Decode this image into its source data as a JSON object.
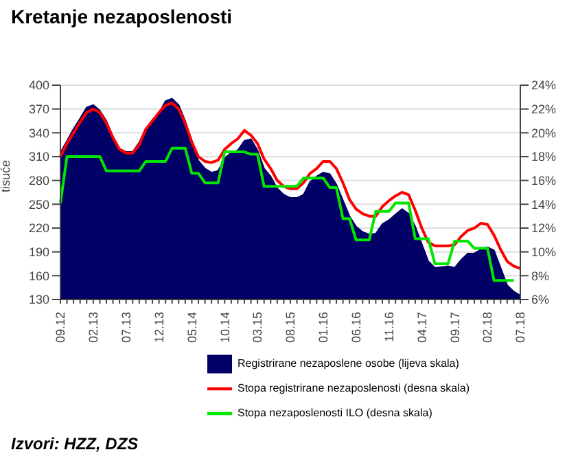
{
  "chart_data": {
    "type": "area",
    "title": "Kretanje nezaposlenosti",
    "ylabel": "tisuće",
    "categories": [
      "09.12",
      null,
      null,
      null,
      null,
      "02.13",
      null,
      null,
      null,
      null,
      "07.13",
      null,
      null,
      null,
      null,
      "12.13",
      null,
      null,
      null,
      null,
      "05.14",
      null,
      null,
      null,
      null,
      "10.14",
      null,
      null,
      null,
      null,
      "03.15",
      null,
      null,
      null,
      null,
      "08.15",
      null,
      null,
      null,
      null,
      "01.16",
      null,
      null,
      null,
      null,
      "06.16",
      null,
      null,
      null,
      null,
      "11.16",
      null,
      null,
      null,
      null,
      "04.17",
      null,
      null,
      null,
      null,
      "09.17",
      null,
      null,
      null,
      null,
      "02.18",
      null,
      null,
      null,
      null,
      "07.18"
    ],
    "series": [
      {
        "name": "Registrirane nezaposlene osobe (lijeva skala)",
        "color": "#000066",
        "values": [
          315,
          330,
          345,
          358,
          372,
          375,
          368,
          355,
          335,
          320,
          316,
          316,
          328,
          345,
          356,
          365,
          380,
          383,
          375,
          355,
          330,
          305,
          295,
          290,
          292,
          308,
          315,
          318,
          330,
          332,
          318,
          295,
          285,
          270,
          262,
          258,
          258,
          262,
          278,
          285,
          290,
          288,
          275,
          255,
          235,
          222,
          215,
          212,
          213,
          225,
          230,
          237,
          244,
          238,
          222,
          200,
          178,
          170,
          171,
          172,
          170,
          180,
          188,
          188,
          193,
          196,
          192,
          170,
          148,
          140,
          135
        ]
      },
      {
        "name": "Stopa registrirane nezaposlenosti (desna skala)",
        "type": "line",
        "axis": "y2",
        "color": "#ff0000",
        "values": [
          18.0,
          19.1,
          20.0,
          20.9,
          21.7,
          22.0,
          21.7,
          20.8,
          19.6,
          18.6,
          18.3,
          18.3,
          19.0,
          20.3,
          21.0,
          21.7,
          22.3,
          22.5,
          22.0,
          20.8,
          19.2,
          18.0,
          17.6,
          17.5,
          17.7,
          18.6,
          19.1,
          19.5,
          20.2,
          19.8,
          19.1,
          17.8,
          17.0,
          16.0,
          15.5,
          15.3,
          15.3,
          15.8,
          16.6,
          17.0,
          17.6,
          17.6,
          17.0,
          15.8,
          14.4,
          13.6,
          13.2,
          13.0,
          13.0,
          13.8,
          14.3,
          14.7,
          15.0,
          14.8,
          13.5,
          12.0,
          10.8,
          10.5,
          10.5,
          10.5,
          10.6,
          11.3,
          11.8,
          12.0,
          12.4,
          12.3,
          11.4,
          10.2,
          9.2,
          8.8,
          8.6
        ]
      },
      {
        "name": "Stopa nezaposlenosti ILO (desna skala)",
        "type": "line",
        "axis": "y2",
        "color": "#00e600",
        "values": [
          14.1,
          18.0,
          18.0,
          18.0,
          18.0,
          18.0,
          18.0,
          16.8,
          16.8,
          16.8,
          16.8,
          16.8,
          16.8,
          17.6,
          17.6,
          17.6,
          17.6,
          18.7,
          18.7,
          18.7,
          16.6,
          16.6,
          15.8,
          15.8,
          15.8,
          18.4,
          18.4,
          18.4,
          18.4,
          18.2,
          18.2,
          15.5,
          15.5,
          15.5,
          15.5,
          15.5,
          15.5,
          16.2,
          16.2,
          16.2,
          16.2,
          15.4,
          15.4,
          12.8,
          12.8,
          11.0,
          11.0,
          11.0,
          13.4,
          13.4,
          13.4,
          14.1,
          14.1,
          14.1,
          11.1,
          11.1,
          11.1,
          9.0,
          9.0,
          9.0,
          10.9,
          10.9,
          10.9,
          10.3,
          10.3,
          10.3,
          7.6,
          7.6,
          7.6,
          7.6,
          null
        ]
      }
    ],
    "ylim": [
      130,
      400
    ],
    "yticks": [
      130,
      160,
      190,
      220,
      250,
      280,
      310,
      340,
      370,
      400
    ],
    "y2lim": [
      6,
      24
    ],
    "y2ticks": [
      {
        "value": 6,
        "label": "6%"
      },
      {
        "value": 8,
        "label": "8%"
      },
      {
        "value": 10,
        "label": "10%"
      },
      {
        "value": 12,
        "label": "12%"
      },
      {
        "value": 14,
        "label": "14%"
      },
      {
        "value": 16,
        "label": "16%"
      },
      {
        "value": 18,
        "label": "18%"
      },
      {
        "value": 20,
        "label": "20%"
      },
      {
        "value": 22,
        "label": "22%"
      },
      {
        "value": 24,
        "label": "24%"
      }
    ],
    "grid": "y",
    "legend": "bottom",
    "marker": "none",
    "annotations": [
      "Izvori: HZZ, DZS"
    ]
  }
}
